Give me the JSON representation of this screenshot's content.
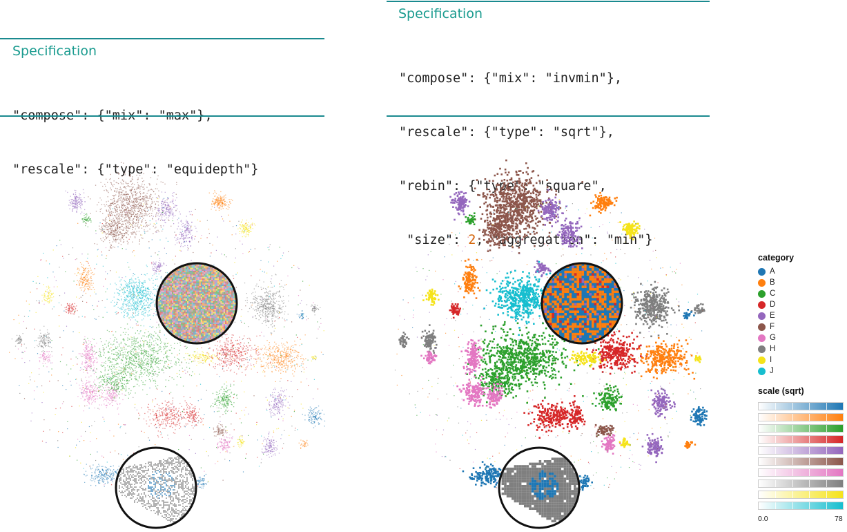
{
  "spec_left": {
    "title": "Specification",
    "lines": [
      [
        "\"compose\"",
        ": ",
        "{",
        "\"mix\"",
        ": ",
        "\"max\"",
        "}",
        ","
      ],
      [
        "\"rescale\"",
        ": ",
        "{",
        "\"type\"",
        ": ",
        "\"equidepth\"",
        "}"
      ]
    ],
    "line1": "\"compose\": {\"mix\": \"max\"},",
    "line2": "\"rescale\": {\"type\": \"equidepth\"}"
  },
  "spec_right": {
    "title": "Specification",
    "line1": "\"compose\": {\"mix\": \"invmin\"},",
    "line2": "\"rescale\": {\"type\": \"sqrt\"},",
    "line3a": "\"rebin\": {\"type\": \"square\",",
    "line4a": " \"size\": ",
    "line4n": "2",
    "line4b": ", \"aggregation\": \"min\"}"
  },
  "colors": {
    "accent": "#1a9b8f",
    "A": "#1f77b4",
    "B": "#ff7f0e",
    "C": "#2ca02c",
    "D": "#d62728",
    "E": "#9467bd",
    "F": "#8c564b",
    "G": "#e377c2",
    "H": "#7f7f7f",
    "I": "#f5e31a",
    "J": "#17becf"
  },
  "chart_data": [
    {
      "type": "scatter",
      "description_note": "",
      "mix": "max",
      "rescale": "equidepth",
      "categories": [
        "A",
        "B",
        "C",
        "D",
        "E",
        "F",
        "G",
        "H",
        "I",
        "J"
      ]
    },
    {
      "type": "scatter",
      "mix": "invmin",
      "rescale": "sqrt",
      "rebin": {
        "type": "square",
        "size": 2,
        "aggregation": "min"
      },
      "categories": [
        "A",
        "B",
        "C",
        "D",
        "E",
        "F",
        "G",
        "H",
        "I",
        "J"
      ]
    }
  ],
  "legend": {
    "category_title": "category",
    "items": [
      "A",
      "B",
      "C",
      "D",
      "E",
      "F",
      "G",
      "H",
      "I",
      "J"
    ],
    "scale_title": "scale (sqrt)",
    "scale_min": "0.0",
    "scale_max": "78"
  }
}
